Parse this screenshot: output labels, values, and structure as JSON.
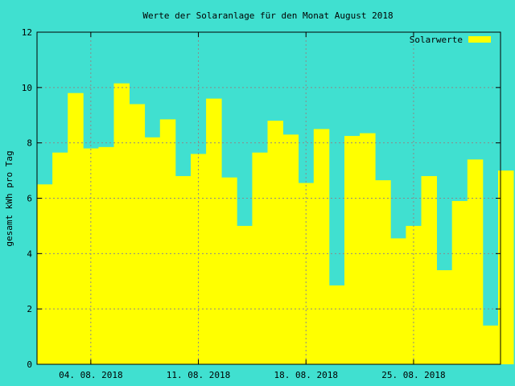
{
  "colors": {
    "background": "#40e0d0",
    "bar": "#ffff00",
    "grid": "#8a8a8a",
    "axis": "#000000"
  },
  "chart_data": {
    "type": "bar",
    "title": "Werte der Solaranlage für den Monat August 2018",
    "ylabel": "gesamt kWh pro Tag",
    "xlabel": "",
    "ylim": [
      0,
      12
    ],
    "yticks": [
      0,
      2,
      4,
      6,
      8,
      10,
      12
    ],
    "grid": true,
    "legend": {
      "position": "top-right",
      "entries": [
        "Solarwerte"
      ]
    },
    "x_tick_labels": [
      {
        "day": 4,
        "label": "04. 08. 2018"
      },
      {
        "day": 11,
        "label": "11. 08. 2018"
      },
      {
        "day": 18,
        "label": "18. 08. 2018"
      },
      {
        "day": 25,
        "label": "25. 08. 2018"
      }
    ],
    "series": [
      {
        "name": "Solarwerte",
        "days": [
          1,
          2,
          3,
          4,
          5,
          6,
          7,
          8,
          9,
          10,
          11,
          12,
          13,
          14,
          15,
          16,
          17,
          18,
          19,
          20,
          21,
          22,
          23,
          24,
          25,
          26,
          27,
          28,
          29,
          30,
          31
        ],
        "values": [
          6.5,
          7.65,
          9.8,
          7.8,
          7.85,
          10.15,
          9.4,
          8.2,
          8.85,
          6.8,
          7.6,
          9.6,
          6.75,
          5.0,
          7.65,
          8.8,
          8.3,
          6.55,
          8.5,
          2.85,
          8.25,
          8.35,
          6.65,
          4.55,
          5.0,
          6.8,
          3.4,
          5.9,
          7.4,
          1.4,
          7.0
        ]
      }
    ]
  }
}
